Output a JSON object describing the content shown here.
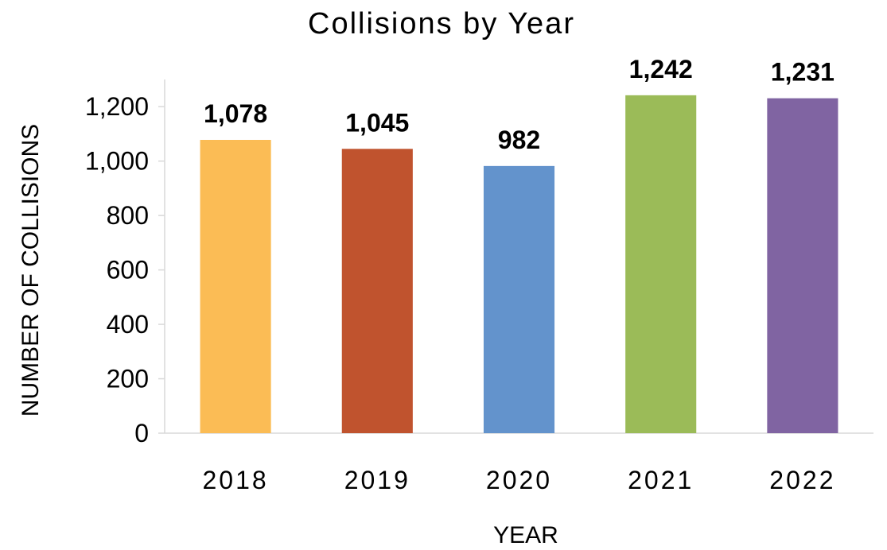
{
  "chart_data": {
    "type": "bar",
    "title": "Collisions by Year",
    "xlabel": "YEAR",
    "ylabel": "NUMBER OF COLLISIONS",
    "categories": [
      "2018",
      "2019",
      "2020",
      "2021",
      "2022"
    ],
    "values": [
      1078,
      1045,
      982,
      1242,
      1231
    ],
    "data_labels": [
      "1,078",
      "1,045",
      "982",
      "1,242",
      "1,231"
    ],
    "colors": [
      "#fbbc55",
      "#c0532e",
      "#6393cc",
      "#9bbb58",
      "#8064a2"
    ],
    "ylim": [
      0,
      1300
    ],
    "yticks": [
      0,
      200,
      400,
      600,
      800,
      1000,
      1200
    ],
    "ytick_labels": [
      "0",
      "200",
      "400",
      "600",
      "800",
      "1,000",
      "1,200"
    ],
    "grid": false,
    "legend": "none"
  }
}
